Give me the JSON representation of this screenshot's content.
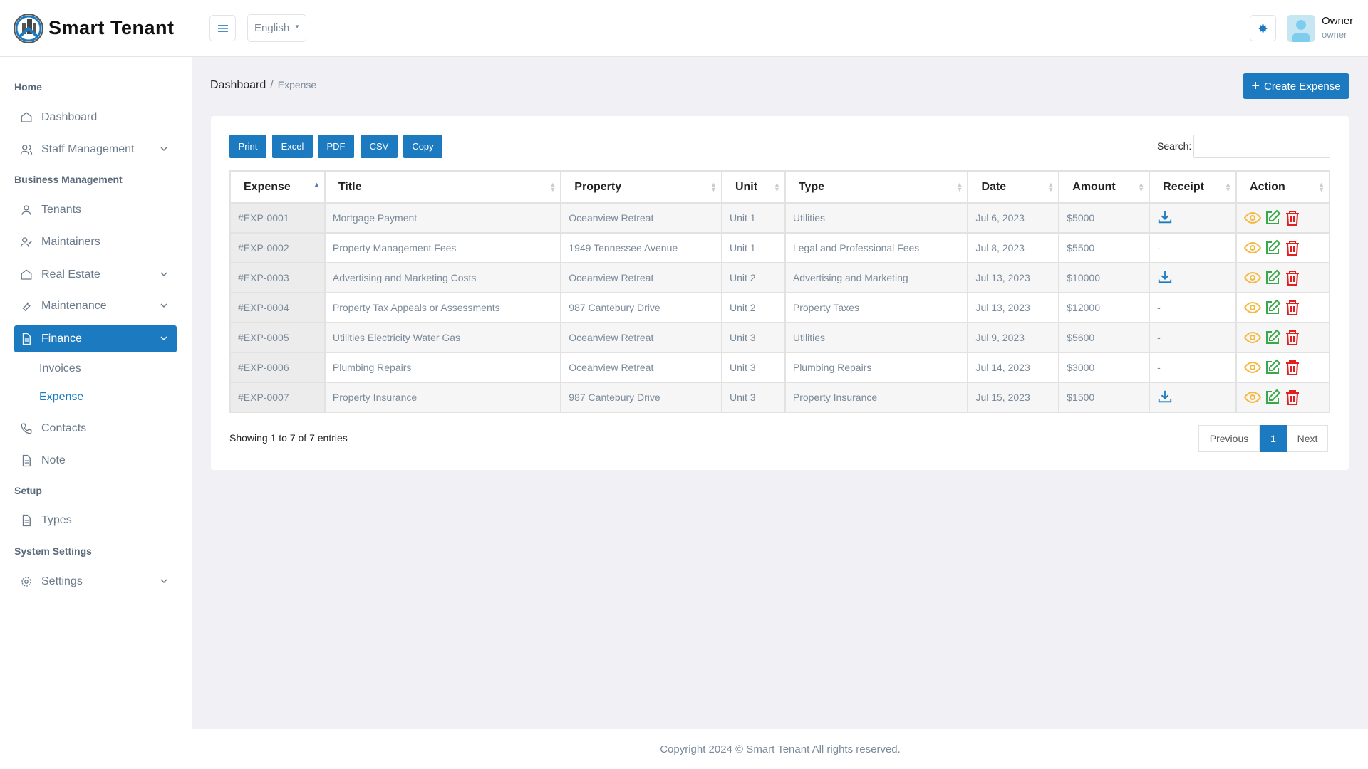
{
  "app": {
    "name": "Smart Tenant"
  },
  "header": {
    "language": "English",
    "user_name": "Owner",
    "user_role": "owner"
  },
  "sidebar": {
    "sections": [
      "Home",
      "Business Management",
      "Setup",
      "System Settings"
    ],
    "items": [
      {
        "label": "Dashboard",
        "icon": "home-icon"
      },
      {
        "label": "Staff Management",
        "icon": "users-icon"
      },
      {
        "label": "Tenants",
        "icon": "user-icon"
      },
      {
        "label": "Maintainers",
        "icon": "user-check-icon"
      },
      {
        "label": "Real Estate",
        "icon": "home-icon"
      },
      {
        "label": "Maintenance",
        "icon": "tool-icon"
      },
      {
        "label": "Finance",
        "icon": "file-icon"
      },
      {
        "label": "Contacts",
        "icon": "phone-icon"
      },
      {
        "label": "Note",
        "icon": "file-icon"
      },
      {
        "label": "Types",
        "icon": "file-icon"
      },
      {
        "label": "Settings",
        "icon": "gear-icon"
      }
    ],
    "finance_sub": [
      "Invoices",
      "Expense"
    ]
  },
  "breadcrumb": {
    "root": "Dashboard",
    "current": "Expense"
  },
  "create_label": "Create Expense",
  "toolbar": [
    "Print",
    "Excel",
    "PDF",
    "CSV",
    "Copy"
  ],
  "search_label": "Search:",
  "table": {
    "columns": [
      "Expense",
      "Title",
      "Property",
      "Unit",
      "Type",
      "Date",
      "Amount",
      "Receipt",
      "Action"
    ],
    "rows": [
      [
        "#EXP-0001",
        "Mortgage Payment",
        "Oceanview Retreat",
        "Unit 1",
        "Utilities",
        "Jul 6, 2023",
        "$5000",
        true
      ],
      [
        "#EXP-0002",
        "Property Management Fees",
        "1949 Tennessee Avenue",
        "Unit 1",
        "Legal and Professional Fees",
        "Jul 8, 2023",
        "$5500",
        false
      ],
      [
        "#EXP-0003",
        "Advertising and Marketing Costs",
        "Oceanview Retreat",
        "Unit 2",
        "Advertising and Marketing",
        "Jul 13, 2023",
        "$10000",
        true
      ],
      [
        "#EXP-0004",
        "Property Tax Appeals or Assessments",
        "987 Cantebury Drive",
        "Unit 2",
        "Property Taxes",
        "Jul 13, 2023",
        "$12000",
        false
      ],
      [
        "#EXP-0005",
        "Utilities Electricity Water Gas",
        "Oceanview Retreat",
        "Unit 3",
        "Utilities",
        "Jul 9, 2023",
        "$5600",
        false
      ],
      [
        "#EXP-0006",
        "Plumbing Repairs",
        "Oceanview Retreat",
        "Unit 3",
        "Plumbing Repairs",
        "Jul 14, 2023",
        "$3000",
        false
      ],
      [
        "#EXP-0007",
        "Property Insurance",
        "987 Cantebury Drive",
        "Unit 3",
        "Property Insurance",
        "Jul 15, 2023",
        "$1500",
        true
      ]
    ],
    "no_receipt": "-"
  },
  "showing": "Showing 1 to 7 of 7 entries",
  "pagination": {
    "prev": "Previous",
    "page": "1",
    "next": "Next"
  },
  "footer": "Copyright 2024 © Smart Tenant All rights reserved.",
  "colors": {
    "primary": "#1c7bc0",
    "view": "#f5b942",
    "edit": "#3aa84a",
    "delete": "#e02020"
  }
}
